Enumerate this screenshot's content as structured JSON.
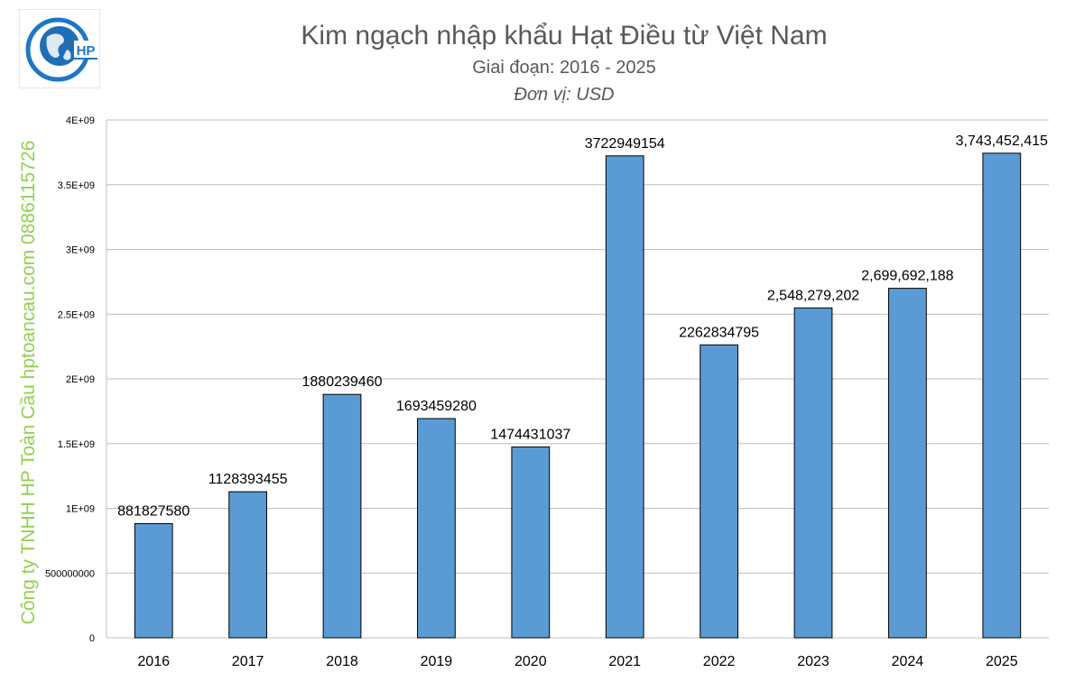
{
  "logo": {
    "text": "HP",
    "icon": "globe-logo-icon"
  },
  "watermark": "Công ty TNHH HP Toàn Cầu hptoancau.com 0886115726",
  "colors": {
    "bar": "#5b9bd5",
    "bar_stroke": "#000000",
    "grid": "#bfbfbf",
    "title": "#595959",
    "watermark": "#92d050"
  },
  "chart_data": {
    "type": "bar",
    "title": "Kim ngạch nhập khẩu Hạt Điều từ Việt Nam",
    "subtitle": "Giai đoạn: 2016 - 2025",
    "unit_note": "Đơn vị: USD",
    "xlabel": "",
    "ylabel": "",
    "categories": [
      "2016",
      "2017",
      "2018",
      "2019",
      "2020",
      "2021",
      "2022",
      "2023",
      "2024",
      "2025"
    ],
    "values": [
      881827580,
      1128393455,
      1880239460,
      1693459280,
      1474431037,
      3722949154,
      2262834795,
      2548279202,
      2699692188,
      3743452415
    ],
    "data_labels": [
      "881827580",
      "1128393455",
      "1880239460",
      "1693459280",
      "1474431037",
      "3722949154",
      "2262834795",
      "2,548,279,202",
      "2,699,692,188",
      "3,743,452,415"
    ],
    "ylim": [
      0,
      4000000000
    ],
    "yticks": [
      0,
      500000000,
      1000000000,
      1500000000,
      2000000000,
      2500000000,
      3000000000,
      3500000000,
      4000000000
    ],
    "ytick_labels": [
      "0",
      "500000000",
      "1E+09",
      "1.5E+09",
      "2E+09",
      "2.5E+09",
      "3E+09",
      "3.5E+09",
      "4E+09"
    ],
    "grid": true,
    "legend": "none"
  }
}
